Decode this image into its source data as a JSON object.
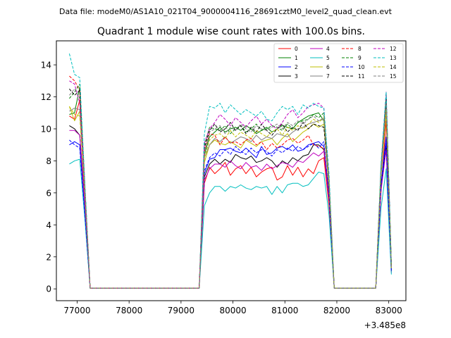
{
  "header": {
    "data_file": "Data file: modeM0/AS1A10_021T04_9000004116_28691cztM0_level2_quad_clean.evt"
  },
  "chart_data": {
    "type": "line",
    "title": "Quadrant 1 module wise count rates with 100.0s bins.",
    "xlabel": "",
    "ylabel": "",
    "x_offset_label": "+3.485e8",
    "xlim": [
      76600,
      83330
    ],
    "ylim": [
      -0.7385,
      15.5
    ],
    "xticks": [
      77000,
      78000,
      79000,
      80000,
      81000,
      82000,
      83000
    ],
    "xtick_labels": [
      "77000",
      "78000",
      "79000",
      "80000",
      "81000",
      "82000",
      "83000"
    ],
    "yticks": [
      0,
      2,
      4,
      6,
      8,
      10,
      12,
      14
    ],
    "ytick_labels": [
      "0",
      "2",
      "4",
      "6",
      "8",
      "10",
      "12",
      "14"
    ],
    "legend_position": "top-right",
    "x": [
      76850,
      76950,
      77050,
      77150,
      77250,
      77350,
      77450,
      77550,
      77650,
      77750,
      77850,
      77950,
      78050,
      78150,
      78250,
      78350,
      78450,
      78550,
      78650,
      78750,
      78850,
      78950,
      79050,
      79150,
      79250,
      79350,
      79450,
      79550,
      79650,
      79750,
      79850,
      79950,
      80050,
      80150,
      80250,
      80350,
      80450,
      80550,
      80650,
      80750,
      80850,
      80950,
      81050,
      81150,
      81250,
      81350,
      81450,
      81550,
      81650,
      81750,
      81850,
      81950,
      82050,
      82150,
      82250,
      82350,
      82450,
      82550,
      82650,
      82750,
      82850,
      82950,
      83050
    ],
    "series": [
      {
        "name": "0",
        "color": "#ff0000",
        "dash": "solid",
        "values": [
          10.8,
          10.6,
          11.8,
          5.5,
          0.05,
          0.05,
          0.05,
          0.05,
          0.05,
          0.05,
          0.05,
          0.05,
          0.05,
          0.05,
          0.05,
          0.05,
          0.05,
          0.05,
          0.05,
          0.05,
          0.05,
          0.05,
          0.05,
          0.05,
          0.05,
          0.05,
          6.6,
          7.6,
          7.2,
          7.5,
          7.9,
          7.1,
          7.5,
          7.7,
          7.2,
          7.6,
          7.0,
          7.3,
          7.5,
          7.6,
          6.8,
          7.0,
          7.7,
          7.1,
          7.6,
          7.0,
          7.5,
          7.2,
          8.0,
          8.2,
          5.2,
          0.05,
          0.05,
          0.05,
          0.05,
          0.05,
          0.05,
          0.05,
          0.05,
          0.05,
          6.0,
          10.5,
          1.4
        ]
      },
      {
        "name": "1",
        "color": "#008000",
        "dash": "solid",
        "values": [
          10.9,
          11.0,
          12.6,
          6.0,
          0.05,
          0.05,
          0.05,
          0.05,
          0.05,
          0.05,
          0.05,
          0.05,
          0.05,
          0.05,
          0.05,
          0.05,
          0.05,
          0.05,
          0.05,
          0.05,
          0.05,
          0.05,
          0.05,
          0.05,
          0.05,
          0.05,
          8.4,
          9.5,
          9.8,
          10.1,
          9.8,
          10.0,
          10.1,
          9.9,
          10.2,
          10.0,
          9.7,
          9.9,
          10.1,
          9.8,
          10.0,
          10.2,
          10.1,
          10.0,
          10.4,
          10.6,
          10.8,
          10.9,
          11.0,
          10.5,
          6.5,
          0.05,
          0.05,
          0.05,
          0.05,
          0.05,
          0.05,
          0.05,
          0.05,
          0.05,
          7.2,
          11.8,
          1.5
        ]
      },
      {
        "name": "2",
        "color": "#0000ff",
        "dash": "solid",
        "values": [
          9.0,
          9.2,
          9.0,
          4.8,
          0.05,
          0.05,
          0.05,
          0.05,
          0.05,
          0.05,
          0.05,
          0.05,
          0.05,
          0.05,
          0.05,
          0.05,
          0.05,
          0.05,
          0.05,
          0.05,
          0.05,
          0.05,
          0.05,
          0.05,
          0.05,
          0.05,
          7.2,
          8.1,
          8.2,
          8.7,
          8.7,
          8.8,
          8.6,
          8.5,
          8.8,
          8.5,
          8.2,
          8.9,
          8.4,
          8.5,
          8.8,
          8.9,
          8.7,
          9.0,
          8.6,
          8.7,
          9.0,
          9.1,
          9.2,
          8.9,
          5.9,
          0.05,
          0.05,
          0.05,
          0.05,
          0.05,
          0.05,
          0.05,
          0.05,
          0.05,
          6.5,
          9.5,
          1.1
        ]
      },
      {
        "name": "3",
        "color": "#000000",
        "dash": "solid",
        "values": [
          10.2,
          10.0,
          9.6,
          5.4,
          0.05,
          0.05,
          0.05,
          0.05,
          0.05,
          0.05,
          0.05,
          0.05,
          0.05,
          0.05,
          0.05,
          0.05,
          0.05,
          0.05,
          0.05,
          0.05,
          0.05,
          0.05,
          0.05,
          0.05,
          0.05,
          0.05,
          7.0,
          7.8,
          8.1,
          7.8,
          8.1,
          7.9,
          8.4,
          8.2,
          8.1,
          8.3,
          7.9,
          8.0,
          8.2,
          8.0,
          7.6,
          8.0,
          7.8,
          8.2,
          8.0,
          8.3,
          8.4,
          9.0,
          9.0,
          8.7,
          5.7,
          0.05,
          0.05,
          0.05,
          0.05,
          0.05,
          0.05,
          0.05,
          0.05,
          0.05,
          6.3,
          9.0,
          1.1
        ]
      },
      {
        "name": "4",
        "color": "#bf00bf",
        "dash": "solid",
        "values": [
          9.9,
          9.9,
          9.6,
          5.2,
          0.05,
          0.05,
          0.05,
          0.05,
          0.05,
          0.05,
          0.05,
          0.05,
          0.05,
          0.05,
          0.05,
          0.05,
          0.05,
          0.05,
          0.05,
          0.05,
          0.05,
          0.05,
          0.05,
          0.05,
          0.05,
          0.05,
          6.8,
          7.5,
          7.8,
          7.8,
          7.6,
          8.0,
          7.7,
          7.5,
          7.9,
          7.6,
          7.7,
          7.4,
          7.8,
          7.5,
          7.7,
          7.9,
          7.8,
          7.6,
          8.0,
          7.9,
          8.2,
          8.5,
          8.3,
          8.6,
          5.6,
          0.05,
          0.05,
          0.05,
          0.05,
          0.05,
          0.05,
          0.05,
          0.05,
          0.05,
          6.1,
          8.7,
          1.0
        ]
      },
      {
        "name": "5",
        "color": "#00bfbf",
        "dash": "solid",
        "values": [
          7.8,
          8.0,
          8.1,
          4.3,
          0.05,
          0.05,
          0.05,
          0.05,
          0.05,
          0.05,
          0.05,
          0.05,
          0.05,
          0.05,
          0.05,
          0.05,
          0.05,
          0.05,
          0.05,
          0.05,
          0.05,
          0.05,
          0.05,
          0.05,
          0.05,
          0.05,
          5.2,
          6.0,
          6.4,
          6.4,
          6.1,
          6.4,
          6.3,
          6.5,
          6.3,
          6.2,
          6.4,
          6.3,
          6.4,
          5.9,
          6.4,
          6.0,
          6.5,
          6.6,
          6.6,
          6.4,
          6.5,
          6.9,
          7.3,
          7.2,
          4.6,
          0.05,
          0.05,
          0.05,
          0.05,
          0.05,
          0.05,
          0.05,
          0.05,
          0.05,
          5.0,
          7.5,
          0.9
        ]
      },
      {
        "name": "6",
        "color": "#bfbf00",
        "dash": "solid",
        "values": [
          11.4,
          10.5,
          11.1,
          5.8,
          0.05,
          0.05,
          0.05,
          0.05,
          0.05,
          0.05,
          0.05,
          0.05,
          0.05,
          0.05,
          0.05,
          0.05,
          0.05,
          0.05,
          0.05,
          0.05,
          0.05,
          0.05,
          0.05,
          0.05,
          0.05,
          0.05,
          7.9,
          9.0,
          9.3,
          9.1,
          9.0,
          9.2,
          9.0,
          8.8,
          9.3,
          9.1,
          8.9,
          9.2,
          9.3,
          9.4,
          9.0,
          9.4,
          9.7,
          9.2,
          9.5,
          9.8,
          10.0,
          10.3,
          10.1,
          10.3,
          6.3,
          0.05,
          0.05,
          0.05,
          0.05,
          0.05,
          0.05,
          0.05,
          0.05,
          0.05,
          7.0,
          11.0,
          1.3
        ]
      },
      {
        "name": "7",
        "color": "#808080",
        "dash": "solid",
        "values": [
          11.1,
          11.3,
          11.2,
          5.8,
          0.05,
          0.05,
          0.05,
          0.05,
          0.05,
          0.05,
          0.05,
          0.05,
          0.05,
          0.05,
          0.05,
          0.05,
          0.05,
          0.05,
          0.05,
          0.05,
          0.05,
          0.05,
          0.05,
          0.05,
          0.05,
          0.05,
          8.2,
          9.0,
          9.4,
          9.2,
          9.5,
          9.1,
          9.3,
          9.5,
          9.4,
          9.2,
          9.6,
          9.3,
          9.5,
          9.4,
          9.7,
          9.6,
          9.5,
          9.8,
          10.0,
          10.1,
          10.3,
          10.4,
          10.5,
          10.6,
          6.4,
          0.05,
          0.05,
          0.05,
          0.05,
          0.05,
          0.05,
          0.05,
          0.05,
          0.05,
          7.1,
          11.3,
          1.3
        ]
      },
      {
        "name": "8",
        "color": "#ff0000",
        "dash": "dashed",
        "values": [
          13.3,
          13.0,
          12.4,
          6.2,
          0.05,
          0.05,
          0.05,
          0.05,
          0.05,
          0.05,
          0.05,
          0.05,
          0.05,
          0.05,
          0.05,
          0.05,
          0.05,
          0.05,
          0.05,
          0.05,
          0.05,
          0.05,
          0.05,
          0.05,
          0.05,
          0.05,
          8.6,
          9.7,
          9.6,
          9.0,
          9.5,
          9.1,
          9.2,
          9.0,
          9.3,
          9.4,
          9.0,
          9.2,
          8.7,
          9.1,
          8.8,
          9.0,
          9.3,
          9.4,
          9.1,
          9.3,
          9.6,
          9.0,
          8.9,
          8.8,
          6.1,
          0.05,
          0.05,
          0.05,
          0.05,
          0.05,
          0.05,
          0.05,
          0.05,
          0.05,
          7.6,
          12.0,
          1.4
        ]
      },
      {
        "name": "9",
        "color": "#008000",
        "dash": "dashed",
        "values": [
          11.9,
          12.3,
          12.8,
          6.4,
          0.05,
          0.05,
          0.05,
          0.05,
          0.05,
          0.05,
          0.05,
          0.05,
          0.05,
          0.05,
          0.05,
          0.05,
          0.05,
          0.05,
          0.05,
          0.05,
          0.05,
          0.05,
          0.05,
          0.05,
          0.05,
          0.05,
          9.0,
          10.1,
          10.0,
          9.9,
          10.2,
          9.7,
          10.0,
          10.2,
          9.8,
          10.0,
          10.3,
          9.9,
          10.0,
          10.2,
          10.1,
          9.9,
          10.3,
          10.0,
          10.4,
          10.5,
          10.6,
          10.9,
          10.7,
          11.0,
          6.8,
          0.05,
          0.05,
          0.05,
          0.05,
          0.05,
          0.05,
          0.05,
          0.05,
          0.05,
          7.5,
          11.9,
          1.5
        ]
      },
      {
        "name": "10",
        "color": "#0000ff",
        "dash": "dashed",
        "values": [
          9.3,
          9.0,
          8.8,
          4.6,
          0.05,
          0.05,
          0.05,
          0.05,
          0.05,
          0.05,
          0.05,
          0.05,
          0.05,
          0.05,
          0.05,
          0.05,
          0.05,
          0.05,
          0.05,
          0.05,
          0.05,
          0.05,
          0.05,
          0.05,
          0.05,
          0.05,
          7.4,
          8.2,
          8.5,
          8.3,
          8.7,
          8.4,
          8.9,
          8.6,
          8.4,
          8.8,
          8.5,
          8.7,
          8.6,
          8.3,
          8.7,
          8.5,
          8.8,
          8.6,
          8.9,
          8.7,
          8.9,
          9.1,
          8.8,
          9.2,
          5.8,
          0.05,
          0.05,
          0.05,
          0.05,
          0.05,
          0.05,
          0.05,
          0.05,
          0.05,
          6.4,
          9.1,
          1.1
        ]
      },
      {
        "name": "11",
        "color": "#000000",
        "dash": "dashed",
        "values": [
          12.5,
          12.1,
          12.4,
          6.3,
          0.05,
          0.05,
          0.05,
          0.05,
          0.05,
          0.05,
          0.05,
          0.05,
          0.05,
          0.05,
          0.05,
          0.05,
          0.05,
          0.05,
          0.05,
          0.05,
          0.05,
          0.05,
          0.05,
          0.05,
          0.05,
          0.05,
          8.8,
          9.9,
          10.3,
          9.8,
          10.0,
          10.4,
          9.9,
          10.2,
          9.7,
          10.1,
          9.8,
          10.3,
          9.9,
          9.6,
          10.0,
          10.3,
          9.8,
          10.1,
          9.9,
          10.4,
          10.0,
          10.3,
          10.2,
          10.1,
          6.6,
          0.05,
          0.05,
          0.05,
          0.05,
          0.05,
          0.05,
          0.05,
          0.05,
          0.05,
          7.3,
          12.1,
          1.5
        ]
      },
      {
        "name": "12",
        "color": "#bf00bf",
        "dash": "dashed",
        "values": [
          13.0,
          12.8,
          11.6,
          6.0,
          0.05,
          0.05,
          0.05,
          0.05,
          0.05,
          0.05,
          0.05,
          0.05,
          0.05,
          0.05,
          0.05,
          0.05,
          0.05,
          0.05,
          0.05,
          0.05,
          0.05,
          0.05,
          0.05,
          0.05,
          0.05,
          0.05,
          9.1,
          10.0,
          10.4,
          10.9,
          10.6,
          10.2,
          10.7,
          10.4,
          10.1,
          10.5,
          10.8,
          10.3,
          10.6,
          10.2,
          10.0,
          10.4,
          10.9,
          11.2,
          10.7,
          11.0,
          11.4,
          11.5,
          11.6,
          11.3,
          7.0,
          0.05,
          0.05,
          0.05,
          0.05,
          0.05,
          0.05,
          0.05,
          0.05,
          0.05,
          7.4,
          12.3,
          1.5
        ]
      },
      {
        "name": "13",
        "color": "#00bfbf",
        "dash": "dashed",
        "values": [
          14.7,
          13.4,
          13.2,
          6.5,
          0.05,
          0.05,
          0.05,
          0.05,
          0.05,
          0.05,
          0.05,
          0.05,
          0.05,
          0.05,
          0.05,
          0.05,
          0.05,
          0.05,
          0.05,
          0.05,
          0.05,
          0.05,
          0.05,
          0.05,
          0.05,
          0.05,
          9.7,
          11.4,
          11.3,
          11.6,
          11.0,
          11.5,
          11.2,
          10.9,
          11.2,
          11.0,
          10.8,
          11.1,
          10.6,
          10.5,
          11.0,
          11.4,
          11.2,
          11.4,
          10.9,
          11.5,
          11.3,
          11.6,
          11.4,
          11.3,
          7.2,
          0.05,
          0.05,
          0.05,
          0.05,
          0.05,
          0.05,
          0.05,
          0.05,
          0.05,
          7.8,
          12.3,
          1.6
        ]
      },
      {
        "name": "14",
        "color": "#bfbf00",
        "dash": "dashed",
        "values": [
          11.4,
          10.9,
          10.8,
          5.7,
          0.05,
          0.05,
          0.05,
          0.05,
          0.05,
          0.05,
          0.05,
          0.05,
          0.05,
          0.05,
          0.05,
          0.05,
          0.05,
          0.05,
          0.05,
          0.05,
          0.05,
          0.05,
          0.05,
          0.05,
          0.05,
          0.05,
          8.2,
          9.3,
          9.6,
          9.7,
          9.4,
          9.9,
          9.5,
          9.8,
          9.6,
          9.4,
          9.9,
          9.7,
          9.5,
          9.8,
          10.0,
          9.6,
          10.1,
          9.9,
          10.2,
          10.0,
          10.3,
          10.6,
          10.4,
          10.7,
          6.5,
          0.05,
          0.05,
          0.05,
          0.05,
          0.05,
          0.05,
          0.05,
          0.05,
          0.05,
          7.1,
          11.2,
          1.3
        ]
      },
      {
        "name": "15",
        "color": "#808080",
        "dash": "dashed",
        "values": [
          12.1,
          12.5,
          11.9,
          6.2,
          0.05,
          0.05,
          0.05,
          0.05,
          0.05,
          0.05,
          0.05,
          0.05,
          0.05,
          0.05,
          0.05,
          0.05,
          0.05,
          0.05,
          0.05,
          0.05,
          0.05,
          0.05,
          0.05,
          0.05,
          0.05,
          0.05,
          8.5,
          9.8,
          10.0,
          10.2,
          9.7,
          10.1,
          9.9,
          10.3,
          10.0,
          9.8,
          10.2,
          10.0,
          9.9,
          10.1,
          10.3,
          10.0,
          10.4,
          10.2,
          10.5,
          10.3,
          10.6,
          10.8,
          10.5,
          10.7,
          6.7,
          0.05,
          0.05,
          0.05,
          0.05,
          0.05,
          0.05,
          0.05,
          0.05,
          0.05,
          7.3,
          11.6,
          1.4
        ]
      }
    ]
  }
}
